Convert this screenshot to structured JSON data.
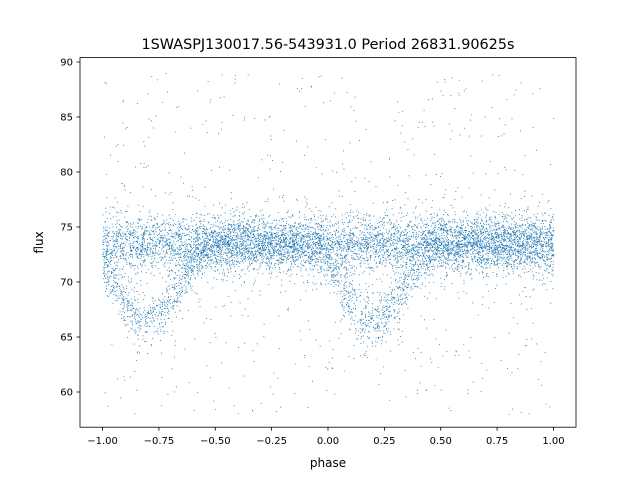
{
  "chart_data": {
    "type": "scatter",
    "title": "1SWASPJ130017.56-543931.0 Period 26831.90625s",
    "xlabel": "phase",
    "ylabel": "flux",
    "xlim": [
      -1.1,
      1.1
    ],
    "ylim": [
      56.8,
      90.4
    ],
    "xticks": [
      -1.0,
      -0.75,
      -0.5,
      -0.25,
      0.0,
      0.25,
      0.5,
      0.75,
      1.0
    ],
    "xtick_labels": [
      "−1.00",
      "−0.75",
      "−0.50",
      "−0.25",
      "0.00",
      "0.25",
      "0.50",
      "0.75",
      "1.00"
    ],
    "yticks": [
      60,
      65,
      70,
      75,
      80,
      85,
      90
    ],
    "ytick_labels": [
      "60",
      "65",
      "70",
      "75",
      "80",
      "85",
      "90"
    ],
    "grid": false,
    "marker_color": "#1f77b4",
    "phase_range": [
      -1.0,
      1.0
    ],
    "baseline_flux": 73.5,
    "baseline_scatter": 1.2,
    "eclipse_centers": [
      -0.8,
      0.2
    ],
    "eclipse_min_flux": 66.5,
    "outlier_range": [
      58,
      89
    ],
    "approx_points": 9000
  }
}
